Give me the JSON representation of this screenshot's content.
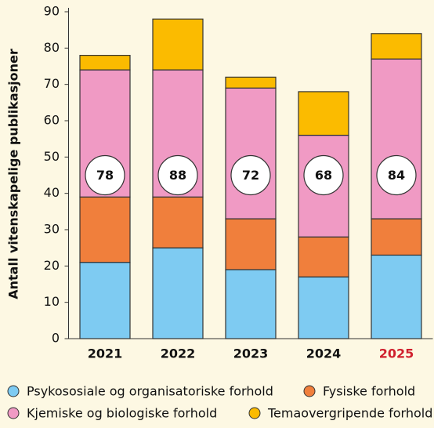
{
  "chart_data": {
    "type": "stacked_bar",
    "y_label": "Antall vitenskapelige publikasjoner",
    "categories": [
      "2021",
      "2022",
      "2023",
      "2024",
      "2025"
    ],
    "category_label_colors": [
      "#111111",
      "#111111",
      "#111111",
      "#111111",
      "#d0202e"
    ],
    "series": [
      {
        "name": "Psykososiale og organisatoriske forhold",
        "color": "#7ecbf2",
        "values": [
          21,
          25,
          19,
          17,
          23
        ]
      },
      {
        "name": "Fysiske forhold",
        "color": "#f07f3c",
        "values": [
          18,
          14,
          14,
          11,
          10
        ]
      },
      {
        "name": "Kjemiske og biologiske forhold",
        "color": "#f09ac4",
        "values": [
          35,
          35,
          36,
          28,
          44
        ]
      },
      {
        "name": "Temaovergripende forhold",
        "color": "#fbbb00",
        "values": [
          4,
          14,
          3,
          12,
          7
        ]
      }
    ],
    "totals": [
      78,
      88,
      72,
      68,
      84
    ],
    "ylim": [
      0,
      90
    ],
    "yticks": [
      0,
      10,
      20,
      30,
      40,
      50,
      60,
      70,
      80,
      90
    ]
  }
}
